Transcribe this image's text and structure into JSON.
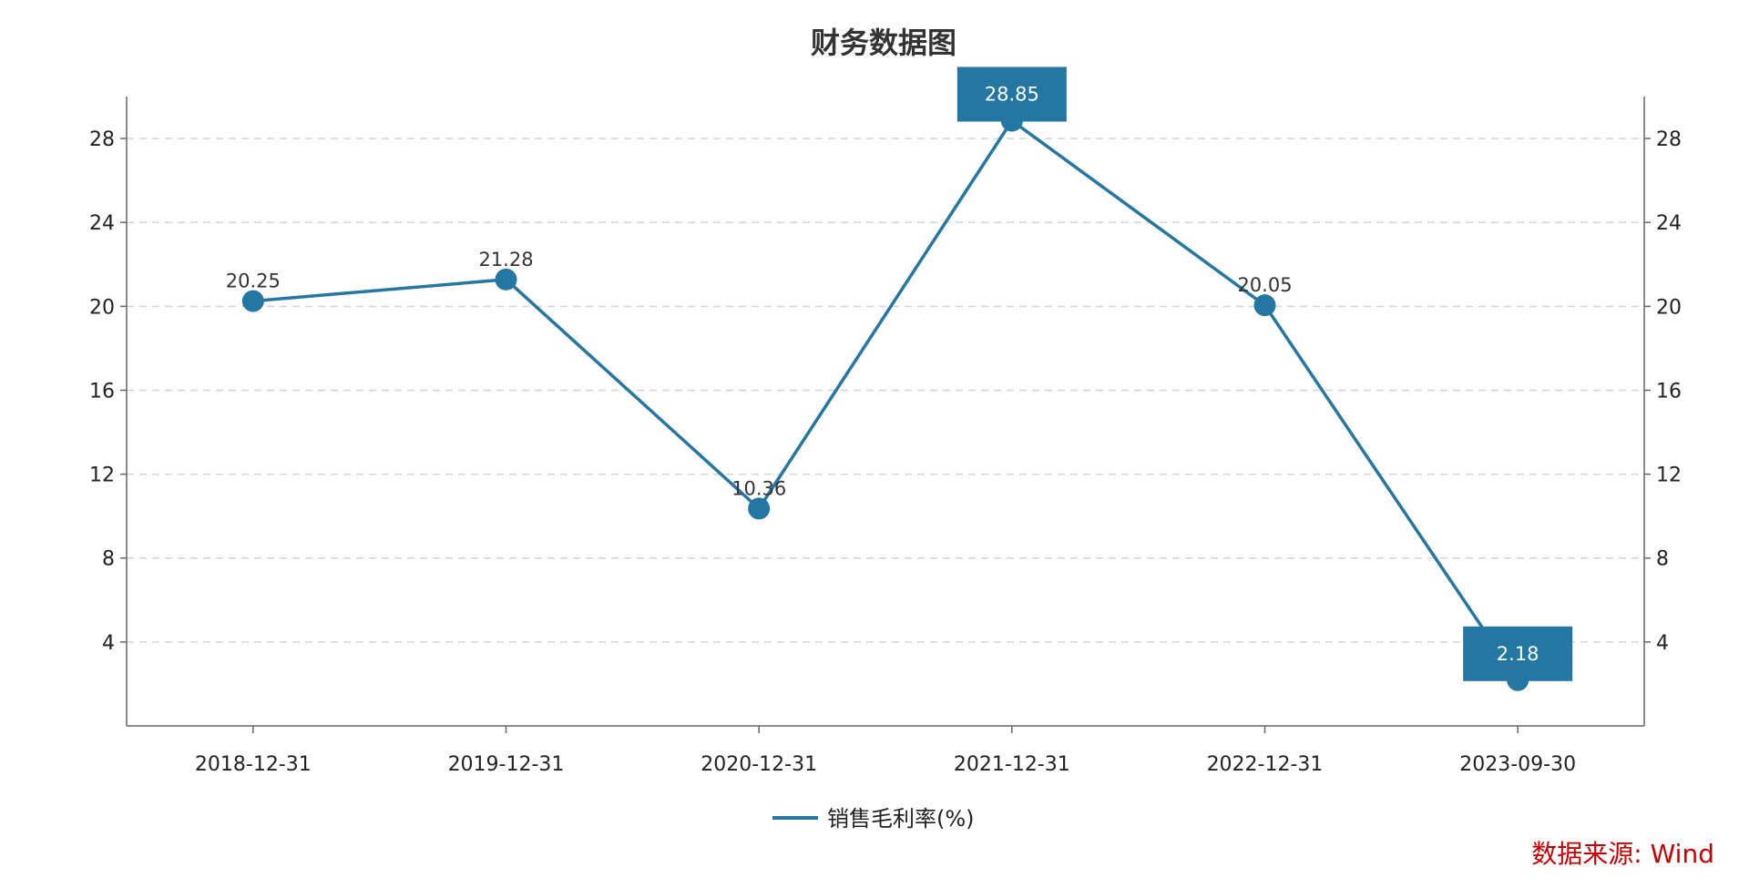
{
  "chart_data": {
    "type": "line",
    "title": "财务数据图",
    "categories": [
      "2018-12-31",
      "2019-12-31",
      "2020-12-31",
      "2021-12-31",
      "2022-12-31",
      "2023-09-30"
    ],
    "series": [
      {
        "name": "销售毛利率(%)",
        "values": [
          20.25,
          21.28,
          10.36,
          28.85,
          20.05,
          2.18
        ],
        "data_labels": [
          "20.25",
          "21.28",
          "10.36",
          "28.85",
          "20.05",
          "2.18"
        ],
        "highlighted": [
          "28.85",
          "2.18"
        ]
      }
    ],
    "ylim": [
      0,
      30
    ],
    "yticks": [
      4,
      8,
      12,
      16,
      20,
      24,
      28
    ],
    "ytick_labels": [
      "4",
      "8",
      "12",
      "16",
      "20",
      "24",
      "28"
    ],
    "secondary_y_axis": true,
    "grid": "horizontal dashed",
    "legend": "bottom-center",
    "xlabel": "",
    "ylabel": ""
  },
  "source": {
    "text": "数据来源: Wind"
  },
  "colors": {
    "series": "#2477a3",
    "grid": "#d4d4d4",
    "axis": "#666666",
    "source": "#cc0000",
    "title": "#333333"
  }
}
